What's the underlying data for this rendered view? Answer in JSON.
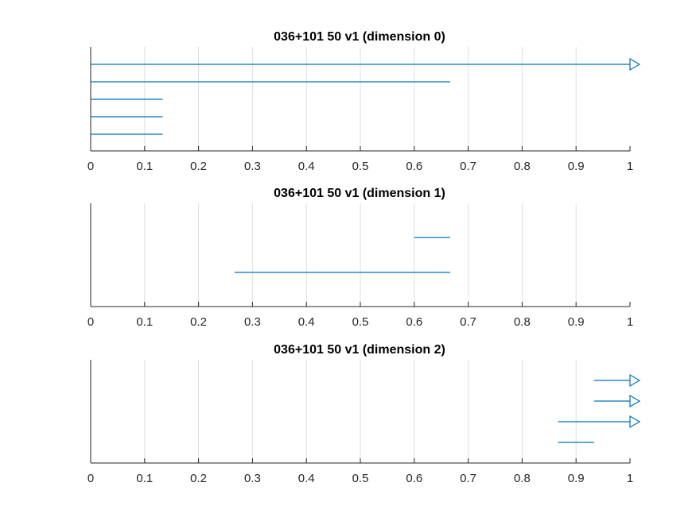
{
  "chart_data": [
    {
      "type": "barcode",
      "title": "036+101 50 v1 (dimension 0)",
      "xlim": [
        0,
        1
      ],
      "xticks": [
        0,
        0.1,
        0.2,
        0.3,
        0.4,
        0.5,
        0.6,
        0.7,
        0.8,
        0.9,
        1
      ],
      "xtick_labels": [
        "0",
        "0.1",
        "0.2",
        "0.3",
        "0.4",
        "0.5",
        "0.6",
        "0.7",
        "0.8",
        "0.9",
        "1"
      ],
      "grid": "vertical",
      "intervals": [
        {
          "birth": 0,
          "death": 1,
          "infinite": true
        },
        {
          "birth": 0,
          "death": 0.6667,
          "infinite": false
        },
        {
          "birth": 0,
          "death": 0.1333,
          "infinite": false
        },
        {
          "birth": 0,
          "death": 0.1333,
          "infinite": false
        },
        {
          "birth": 0,
          "death": 0.1333,
          "infinite": false
        }
      ]
    },
    {
      "type": "barcode",
      "title": "036+101 50 v1 (dimension 1)",
      "xlim": [
        0,
        1
      ],
      "xticks": [
        0,
        0.1,
        0.2,
        0.3,
        0.4,
        0.5,
        0.6,
        0.7,
        0.8,
        0.9,
        1
      ],
      "xtick_labels": [
        "0",
        "0.1",
        "0.2",
        "0.3",
        "0.4",
        "0.5",
        "0.6",
        "0.7",
        "0.8",
        "0.9",
        "1"
      ],
      "grid": "vertical",
      "intervals": [
        {
          "birth": 0.6,
          "death": 0.6667,
          "infinite": false
        },
        {
          "birth": 0.2667,
          "death": 0.6667,
          "infinite": false
        }
      ]
    },
    {
      "type": "barcode",
      "title": "036+101 50 v1 (dimension 2)",
      "xlim": [
        0,
        1
      ],
      "xticks": [
        0,
        0.1,
        0.2,
        0.3,
        0.4,
        0.5,
        0.6,
        0.7,
        0.8,
        0.9,
        1
      ],
      "xtick_labels": [
        "0",
        "0.1",
        "0.2",
        "0.3",
        "0.4",
        "0.5",
        "0.6",
        "0.7",
        "0.8",
        "0.9",
        "1"
      ],
      "grid": "vertical",
      "intervals": [
        {
          "birth": 0.9333,
          "death": 1,
          "infinite": true
        },
        {
          "birth": 0.9333,
          "death": 1,
          "infinite": true
        },
        {
          "birth": 0.8667,
          "death": 1,
          "infinite": true
        },
        {
          "birth": 0.8667,
          "death": 0.9333,
          "infinite": false
        }
      ]
    }
  ],
  "colors": {
    "series": "#0072bd",
    "grid": "#dfdfdf",
    "axis": "#262626"
  }
}
